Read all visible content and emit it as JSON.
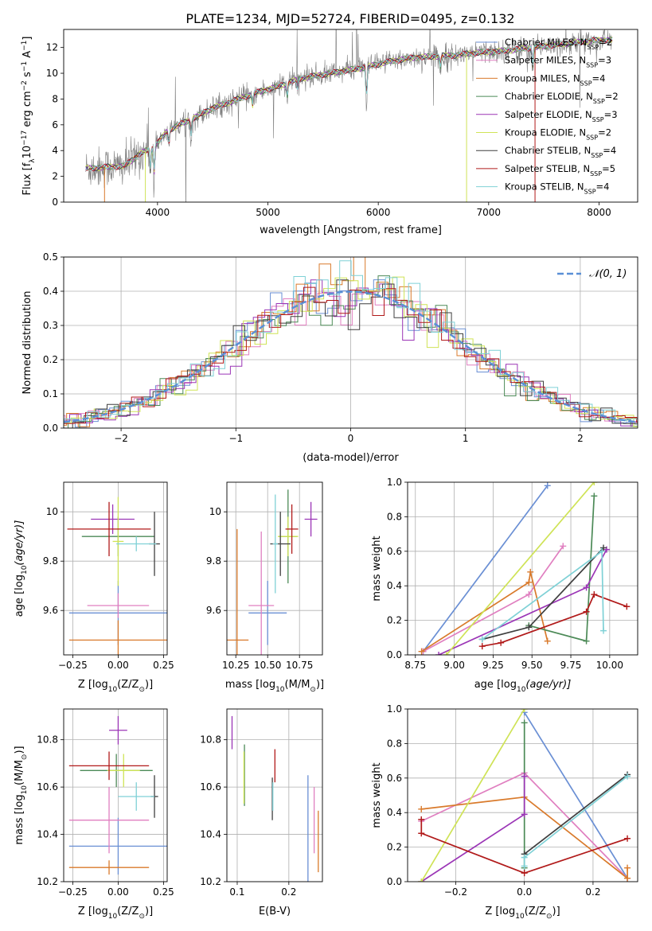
{
  "figure": {
    "title": "PLATE=1234, MJD=52724, FIBERID=0495, z=0.132"
  },
  "colors": {
    "Chabrier MILES": "#6a8fd4",
    "Salpeter MILES": "#e07fc0",
    "Kroupa MILES": "#d97a2b",
    "Chabrier ELODIE": "#4c8a57",
    "Salpeter ELODIE": "#9b35b6",
    "Kroupa ELODIE": "#cfe356",
    "Chabrier STELIB": "#3f3f3f",
    "Salpeter STELIB": "#b11a1a",
    "Kroupa STELIB": "#7fd1d6",
    "spectrum": "#7f7f7f",
    "normal": "#5a8fd6"
  },
  "chart_data": [
    {
      "id": "spectrum",
      "type": "line",
      "title": "PLATE=1234, MJD=52724, FIBERID=0495, z=0.132",
      "xlabel": "wavelength [Angstrom, rest frame]",
      "ylabel_parts": [
        "Flux [f",
        "λ",
        "10",
        "−17",
        " erg cm",
        "−2",
        " s",
        "−1",
        " A",
        "−1",
        "]"
      ],
      "xlim": [
        3150,
        8350
      ],
      "ylim": [
        0,
        13.4
      ],
      "xticks": [
        4000,
        5000,
        6000,
        7000,
        8000
      ],
      "yticks": [
        0,
        2,
        4,
        6,
        8,
        10,
        12
      ],
      "grid": false,
      "legend_position": "top-right",
      "legend": [
        {
          "label": "Chabrier MILES, N",
          "sub": "SSP",
          "tail": "=2"
        },
        {
          "label": "Salpeter MILES, N",
          "sub": "SSP",
          "tail": "=3"
        },
        {
          "label": "Kroupa MILES, N",
          "sub": "SSP",
          "tail": "=4"
        },
        {
          "label": "Chabrier ELODIE, N",
          "sub": "SSP",
          "tail": "=2"
        },
        {
          "label": "Salpeter ELODIE, N",
          "sub": "SSP",
          "tail": "=3"
        },
        {
          "label": "Kroupa ELODIE, N",
          "sub": "SSP",
          "tail": "=2"
        },
        {
          "label": "Chabrier STELIB, N",
          "sub": "SSP",
          "tail": "=4"
        },
        {
          "label": "Salpeter STELIB, N",
          "sub": "SSP",
          "tail": "=5"
        },
        {
          "label": "Kroupa STELIB, N",
          "sub": "SSP",
          "tail": "=4"
        }
      ],
      "continuum": [
        [
          3350,
          2.6
        ],
        [
          3500,
          2.7
        ],
        [
          3700,
          2.8
        ],
        [
          3850,
          3.8
        ],
        [
          3950,
          4.2
        ],
        [
          4000,
          4.6
        ],
        [
          4100,
          5.6
        ],
        [
          4300,
          6.4
        ],
        [
          4500,
          7.3
        ],
        [
          4700,
          7.9
        ],
        [
          4900,
          8.5
        ],
        [
          5100,
          9.0
        ],
        [
          5300,
          9.6
        ],
        [
          5500,
          9.9
        ],
        [
          5700,
          10.2
        ],
        [
          5900,
          10.5
        ],
        [
          6100,
          10.9
        ],
        [
          6300,
          11.2
        ],
        [
          6500,
          11.3
        ],
        [
          6700,
          11.4
        ],
        [
          6900,
          11.6
        ],
        [
          7100,
          11.7
        ],
        [
          7300,
          11.9
        ],
        [
          7500,
          12.1
        ],
        [
          7700,
          12.3
        ],
        [
          7900,
          12.5
        ],
        [
          8100,
          12.6
        ]
      ],
      "absorption_features": [
        [
          3934,
          -2.5
        ],
        [
          3969,
          -3.0
        ],
        [
          4102,
          -1.5
        ],
        [
          4304,
          -1.5
        ],
        [
          4861,
          -1.3
        ],
        [
          5175,
          -1.4
        ],
        [
          5270,
          -1.0
        ],
        [
          5893,
          -3.5
        ],
        [
          6563,
          -1.2
        ],
        [
          7400,
          -2.0
        ]
      ]
    },
    {
      "id": "residuals",
      "type": "histogram",
      "xlabel": "(data-model)/error",
      "ylabel": "Normed distribution",
      "xlim": [
        -2.5,
        2.5
      ],
      "ylim": [
        0,
        0.5
      ],
      "xticks": [
        -2,
        -1,
        0,
        1,
        2
      ],
      "yticks": [
        0.0,
        0.1,
        0.2,
        0.3,
        0.4,
        0.5
      ],
      "grid": true,
      "legend_position": "top-right",
      "legend_label": "𝒩(0, 1)",
      "bin_width": 0.1
    },
    {
      "id": "age-vs-Z",
      "type": "errorbar",
      "xlabel_parts": [
        "Z [log",
        "10",
        "(Z/Z",
        "⊙",
        ")]"
      ],
      "ylabel_parts": [
        "age  [log",
        "10",
        "(age/yr)]"
      ],
      "xlim": [
        -0.3,
        0.27
      ],
      "ylim": [
        9.42,
        10.12
      ],
      "xticks": [
        -0.25,
        0.0,
        0.25
      ],
      "xtick_labels": [
        "−0.25",
        "0.00",
        "0.25"
      ],
      "yticks": [
        9.6,
        9.8,
        10.0
      ],
      "grid": true,
      "points": [
        {
          "model": "Chabrier MILES",
          "x": 0.0,
          "xerr": 0.27,
          "y": 9.59,
          "yerr": 0.13
        },
        {
          "model": "Salpeter MILES",
          "x": 0.0,
          "xerr": 0.17,
          "y": 9.62,
          "yerr": 0.05
        },
        {
          "model": "Kroupa MILES",
          "x": 0.0,
          "xerr": 0.27,
          "y": 9.48,
          "yerr": 0.08
        },
        {
          "model": "Chabrier ELODIE",
          "x": 0.0,
          "xerr": 0.2,
          "y": 9.9,
          "yerr": 0.08
        },
        {
          "model": "Salpeter ELODIE",
          "x": -0.03,
          "xerr": 0.12,
          "y": 9.97,
          "yerr": 0.06
        },
        {
          "model": "Kroupa ELODIE",
          "x": 0.0,
          "xerr": 0.03,
          "y": 9.88,
          "yerr": 0.18
        },
        {
          "model": "Chabrier STELIB",
          "x": 0.2,
          "xerr": 0.03,
          "y": 9.87,
          "yerr": 0.13
        },
        {
          "model": "Salpeter STELIB",
          "x": -0.05,
          "xerr": 0.23,
          "y": 9.93,
          "yerr": 0.11
        },
        {
          "model": "Kroupa STELIB",
          "x": 0.1,
          "xerr": 0.11,
          "y": 9.87,
          "yerr": 0.03
        }
      ]
    },
    {
      "id": "age-vs-mass",
      "type": "errorbar",
      "xlabel_parts": [
        "mass [log",
        "10",
        "(M/M",
        "⊙",
        ")]"
      ],
      "ylabel_parts": [],
      "xlim": [
        10.18,
        10.93
      ],
      "ylim": [
        9.42,
        10.12
      ],
      "xticks": [
        10.25,
        10.5,
        10.75
      ],
      "xtick_labels": [
        "10.25",
        "10.50",
        "10.75"
      ],
      "yticks": [
        9.6,
        9.8,
        10.0
      ],
      "grid": true,
      "points": [
        {
          "model": "Chabrier MILES",
          "x": 10.5,
          "xerr": 0.15,
          "y": 9.59,
          "yerr": 0.13
        },
        {
          "model": "Salpeter MILES",
          "x": 10.45,
          "xerr": 0.1,
          "y": 9.62,
          "yerr": 0.3
        },
        {
          "model": "Kroupa MILES",
          "x": 10.26,
          "xerr": 0.09,
          "y": 9.48,
          "yerr": 0.45
        },
        {
          "model": "Chabrier ELODIE",
          "x": 10.66,
          "xerr": 0.07,
          "y": 9.9,
          "yerr": 0.19
        },
        {
          "model": "Salpeter ELODIE",
          "x": 10.84,
          "xerr": 0.05,
          "y": 9.97,
          "yerr": 0.07
        },
        {
          "model": "Kroupa ELODIE",
          "x": 10.66,
          "xerr": 0.08,
          "y": 9.9,
          "yerr": 0.08
        },
        {
          "model": "Chabrier STELIB",
          "x": 10.6,
          "xerr": 0.08,
          "y": 9.87,
          "yerr": 0.13
        },
        {
          "model": "Salpeter STELIB",
          "x": 10.69,
          "xerr": 0.05,
          "y": 9.93,
          "yerr": 0.1
        },
        {
          "model": "Kroupa STELIB",
          "x": 10.56,
          "xerr": 0.02,
          "y": 9.87,
          "yerr": 0.2
        }
      ]
    },
    {
      "id": "mass-weight-vs-age",
      "type": "line",
      "xlabel_parts": [
        "age  [log",
        "10",
        "(age/yr)]"
      ],
      "ylabel": "mass weight",
      "xlim": [
        8.7,
        10.18
      ],
      "ylim": [
        0,
        1
      ],
      "xticks": [
        8.75,
        9.0,
        9.25,
        9.5,
        9.75,
        10.0
      ],
      "xtick_labels": [
        "8.75",
        "9.00",
        "9.25",
        "9.50",
        "9.75",
        "10.00"
      ],
      "yticks": [
        0.0,
        0.2,
        0.4,
        0.6,
        0.8,
        1.0
      ],
      "grid": true,
      "series": [
        {
          "model": "Chabrier MILES",
          "points": [
            [
              8.8,
              0.02
            ],
            [
              9.6,
              0.98
            ]
          ]
        },
        {
          "model": "Salpeter MILES",
          "points": [
            [
              8.8,
              0.02
            ],
            [
              9.48,
              0.35
            ],
            [
              9.7,
              0.63
            ]
          ]
        },
        {
          "model": "Kroupa MILES",
          "points": [
            [
              8.79,
              0.02
            ],
            [
              9.48,
              0.42
            ],
            [
              9.49,
              0.48
            ],
            [
              9.6,
              0.08
            ]
          ]
        },
        {
          "model": "Chabrier ELODIE",
          "points": [
            [
              9.48,
              0.17
            ],
            [
              9.85,
              0.08
            ],
            [
              9.9,
              0.92
            ]
          ]
        },
        {
          "model": "Salpeter ELODIE",
          "points": [
            [
              8.9,
              0.0
            ],
            [
              9.85,
              0.39
            ],
            [
              9.98,
              0.61
            ]
          ]
        },
        {
          "model": "Kroupa ELODIE",
          "points": [
            [
              8.95,
              0.0
            ],
            [
              9.9,
              1.0
            ]
          ]
        },
        {
          "model": "Chabrier STELIB",
          "points": [
            [
              9.18,
              0.09
            ],
            [
              9.48,
              0.16
            ],
            [
              9.96,
              0.62
            ]
          ]
        },
        {
          "model": "Salpeter STELIB",
          "points": [
            [
              9.18,
              0.05
            ],
            [
              9.3,
              0.07
            ],
            [
              9.85,
              0.25
            ],
            [
              9.9,
              0.35
            ],
            [
              10.11,
              0.28
            ]
          ]
        },
        {
          "model": "Kroupa STELIB",
          "points": [
            [
              9.18,
              0.09
            ],
            [
              9.95,
              0.6
            ],
            [
              9.96,
              0.14
            ]
          ]
        }
      ]
    },
    {
      "id": "mass-vs-Z",
      "type": "errorbar",
      "xlabel_parts": [
        "Z [log",
        "10",
        "(Z/Z",
        "⊙",
        ")]"
      ],
      "ylabel_parts": [
        "mass [log",
        "10",
        "(M/M",
        "⊙",
        ")]"
      ],
      "xlim": [
        -0.3,
        0.27
      ],
      "ylim": [
        10.2,
        10.93
      ],
      "xticks": [
        -0.25,
        0.0,
        0.25
      ],
      "xtick_labels": [
        "−0.25",
        "0.00",
        "0.25"
      ],
      "yticks": [
        10.2,
        10.4,
        10.6,
        10.8
      ],
      "ytick_labels": [
        "10.2",
        "10.4",
        "10.6",
        "10.8"
      ],
      "grid": true,
      "points": [
        {
          "model": "Chabrier MILES",
          "x": -0.0,
          "xerr": 0.27,
          "y": 10.35,
          "yerr": 0.12
        },
        {
          "model": "Salpeter MILES",
          "x": -0.05,
          "xerr": 0.22,
          "y": 10.46,
          "yerr": 0.14
        },
        {
          "model": "Kroupa MILES",
          "x": -0.05,
          "xerr": 0.22,
          "y": 10.26,
          "yerr": 0.03
        },
        {
          "model": "Chabrier ELODIE",
          "x": -0.01,
          "xerr": 0.2,
          "y": 10.67,
          "yerr": 0.07
        },
        {
          "model": "Salpeter ELODIE",
          "x": 0.0,
          "xerr": 0.05,
          "y": 10.84,
          "yerr": 0.06
        },
        {
          "model": "Kroupa ELODIE",
          "x": 0.03,
          "xerr": 0.09,
          "y": 10.67,
          "yerr": 0.07
        },
        {
          "model": "Chabrier STELIB",
          "x": 0.2,
          "xerr": 0.02,
          "y": 10.56,
          "yerr": 0.09
        },
        {
          "model": "Salpeter STELIB",
          "x": -0.05,
          "xerr": 0.22,
          "y": 10.69,
          "yerr": 0.06
        },
        {
          "model": "Kroupa STELIB",
          "x": 0.1,
          "xerr": 0.1,
          "y": 10.56,
          "yerr": 0.06
        }
      ]
    },
    {
      "id": "mass-vs-ebv",
      "type": "errorbar",
      "xlabel": "E(B-V)",
      "ylabel_parts": [],
      "xlim": [
        0.08,
        0.265
      ],
      "ylim": [
        10.2,
        10.93
      ],
      "xticks": [
        0.1,
        0.2
      ],
      "xtick_labels": [
        "0.1",
        "0.2"
      ],
      "yticks": [
        10.2,
        10.4,
        10.6,
        10.8
      ],
      "ytick_labels": [
        "10.2",
        "10.4",
        "10.6",
        "10.8"
      ],
      "grid": true,
      "points": [
        {
          "model": "Chabrier MILES",
          "x": 0.237,
          "xerr": 0.0,
          "y": 10.4,
          "yerr": 0.25
        },
        {
          "model": "Salpeter MILES",
          "x": 0.249,
          "xerr": 0.0,
          "y": 10.46,
          "yerr": 0.14
        },
        {
          "model": "Kroupa MILES",
          "x": 0.257,
          "xerr": 0.0,
          "y": 10.37,
          "yerr": 0.13
        },
        {
          "model": "Chabrier ELODIE",
          "x": 0.114,
          "xerr": 0.0,
          "y": 10.65,
          "yerr": 0.13
        },
        {
          "model": "Salpeter ELODIE",
          "x": 0.09,
          "xerr": 0.0,
          "y": 10.83,
          "yerr": 0.07
        },
        {
          "model": "Kroupa ELODIE",
          "x": 0.113,
          "xerr": 0.0,
          "y": 10.64,
          "yerr": 0.11
        },
        {
          "model": "Chabrier STELIB",
          "x": 0.168,
          "xerr": 0.0,
          "y": 10.55,
          "yerr": 0.09
        },
        {
          "model": "Salpeter STELIB",
          "x": 0.173,
          "xerr": 0.0,
          "y": 10.69,
          "yerr": 0.07
        },
        {
          "model": "Kroupa STELIB",
          "x": 0.169,
          "xerr": 0.0,
          "y": 10.56,
          "yerr": 0.06
        }
      ]
    },
    {
      "id": "mass-weight-vs-Z",
      "type": "line",
      "xlabel_parts": [
        "Z [log",
        "10",
        "(Z/Z",
        "⊙",
        ")]"
      ],
      "ylabel": "mass weight",
      "xlim": [
        -0.34,
        0.33
      ],
      "ylim": [
        0,
        1
      ],
      "xticks": [
        -0.2,
        0.0,
        0.2
      ],
      "xtick_labels": [
        "−0.2",
        "0.0",
        "0.2"
      ],
      "yticks": [
        0.0,
        0.2,
        0.4,
        0.6,
        0.8,
        1.0
      ],
      "grid": true,
      "series": [
        {
          "model": "Chabrier MILES",
          "points": [
            [
              0.0,
              0.98
            ],
            [
              0.3,
              0.02
            ]
          ]
        },
        {
          "model": "Salpeter MILES",
          "points": [
            [
              -0.3,
              0.35
            ],
            [
              0.0,
              0.63
            ],
            [
              0.3,
              0.02
            ]
          ]
        },
        {
          "model": "Kroupa MILES",
          "points": [
            [
              -0.3,
              0.42
            ],
            [
              0.0,
              0.49
            ],
            [
              0.3,
              0.02
            ],
            [
              0.3,
              0.08
            ]
          ]
        },
        {
          "model": "Chabrier ELODIE",
          "points": [
            [
              0.0,
              0.92
            ],
            [
              0.0,
              0.08
            ]
          ]
        },
        {
          "model": "Salpeter ELODIE",
          "points": [
            [
              -0.3,
              0.0
            ],
            [
              0.0,
              0.39
            ],
            [
              0.0,
              0.61
            ]
          ]
        },
        {
          "model": "Kroupa ELODIE",
          "points": [
            [
              -0.3,
              0.0
            ],
            [
              0.0,
              1.0
            ]
          ]
        },
        {
          "model": "Chabrier STELIB",
          "points": [
            [
              0.0,
              0.16
            ],
            [
              0.3,
              0.62
            ]
          ]
        },
        {
          "model": "Salpeter STELIB",
          "points": [
            [
              -0.3,
              0.36
            ],
            [
              -0.3,
              0.28
            ],
            [
              0.0,
              0.05
            ],
            [
              0.3,
              0.25
            ]
          ]
        },
        {
          "model": "Kroupa STELIB",
          "points": [
            [
              0.0,
              0.09
            ],
            [
              0.0,
              0.14
            ],
            [
              0.3,
              0.61
            ]
          ]
        }
      ]
    }
  ]
}
